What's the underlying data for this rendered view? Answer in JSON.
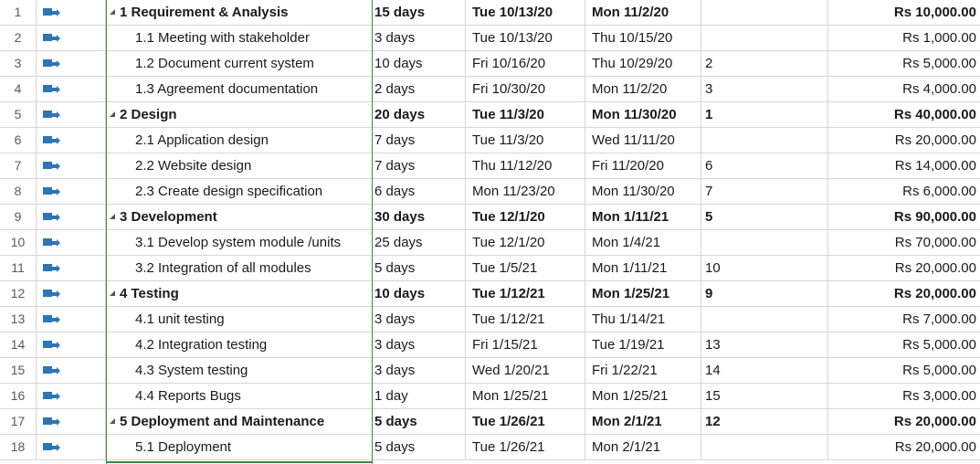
{
  "tasks": [
    {
      "id": "1",
      "name": "1 Requirement & Analysis",
      "duration": "15 days",
      "start": "Tue 10/13/20",
      "finish": "Mon 11/2/20",
      "predecessors": "",
      "cost": "Rs 10,000.00",
      "summary": true
    },
    {
      "id": "2",
      "name": "1.1 Meeting with stakeholder",
      "duration": "3 days",
      "start": "Tue 10/13/20",
      "finish": "Thu 10/15/20",
      "predecessors": "",
      "cost": "Rs 1,000.00",
      "summary": false
    },
    {
      "id": "3",
      "name": "1.2 Document current system",
      "duration": "10 days",
      "start": "Fri 10/16/20",
      "finish": "Thu 10/29/20",
      "predecessors": "2",
      "cost": "Rs 5,000.00",
      "summary": false
    },
    {
      "id": "4",
      "name": "1.3 Agreement documentation",
      "duration": "2 days",
      "start": "Fri 10/30/20",
      "finish": "Mon 11/2/20",
      "predecessors": "3",
      "cost": "Rs 4,000.00",
      "summary": false
    },
    {
      "id": "5",
      "name": "2 Design",
      "duration": "20 days",
      "start": "Tue 11/3/20",
      "finish": "Mon 11/30/20",
      "predecessors": "1",
      "cost": "Rs 40,000.00",
      "summary": true
    },
    {
      "id": "6",
      "name": "2.1 Application design",
      "duration": "7 days",
      "start": "Tue 11/3/20",
      "finish": "Wed 11/11/20",
      "predecessors": "",
      "cost": "Rs 20,000.00",
      "summary": false
    },
    {
      "id": "7",
      "name": "2.2 Website design",
      "duration": "7 days",
      "start": "Thu 11/12/20",
      "finish": "Fri 11/20/20",
      "predecessors": "6",
      "cost": "Rs 14,000.00",
      "summary": false
    },
    {
      "id": "8",
      "name": "2.3 Create design specification",
      "duration": "6 days",
      "start": "Mon 11/23/20",
      "finish": "Mon 11/30/20",
      "predecessors": "7",
      "cost": "Rs 6,000.00",
      "summary": false
    },
    {
      "id": "9",
      "name": "3 Development",
      "duration": "30 days",
      "start": "Tue 12/1/20",
      "finish": "Mon 1/11/21",
      "predecessors": "5",
      "cost": "Rs 90,000.00",
      "summary": true
    },
    {
      "id": "10",
      "name": "3.1 Develop system module /units",
      "duration": "25 days",
      "start": "Tue 12/1/20",
      "finish": "Mon 1/4/21",
      "predecessors": "",
      "cost": "Rs 70,000.00",
      "summary": false
    },
    {
      "id": "11",
      "name": "3.2 Integration of all modules",
      "duration": "5 days",
      "start": "Tue 1/5/21",
      "finish": "Mon 1/11/21",
      "predecessors": "10",
      "cost": "Rs 20,000.00",
      "summary": false
    },
    {
      "id": "12",
      "name": "4 Testing",
      "duration": "10 days",
      "start": "Tue 1/12/21",
      "finish": "Mon 1/25/21",
      "predecessors": "9",
      "cost": "Rs 20,000.00",
      "summary": true
    },
    {
      "id": "13",
      "name": "4.1 unit testing",
      "duration": "3 days",
      "start": "Tue 1/12/21",
      "finish": "Thu 1/14/21",
      "predecessors": "",
      "cost": "Rs 7,000.00",
      "summary": false
    },
    {
      "id": "14",
      "name": "4.2 Integration testing",
      "duration": "3 days",
      "start": "Fri 1/15/21",
      "finish": "Tue 1/19/21",
      "predecessors": "13",
      "cost": "Rs 5,000.00",
      "summary": false
    },
    {
      "id": "15",
      "name": "4.3 System testing",
      "duration": "3 days",
      "start": "Wed 1/20/21",
      "finish": "Fri 1/22/21",
      "predecessors": "14",
      "cost": "Rs 5,000.00",
      "summary": false
    },
    {
      "id": "16",
      "name": "4.4 Reports Bugs",
      "duration": "1 day",
      "start": "Mon 1/25/21",
      "finish": "Mon 1/25/21",
      "predecessors": "15",
      "cost": "Rs 3,000.00",
      "summary": false
    },
    {
      "id": "17",
      "name": "5 Deployment and Maintenance",
      "duration": "5 days",
      "start": "Tue 1/26/21",
      "finish": "Mon 2/1/21",
      "predecessors": "12",
      "cost": "Rs 20,000.00",
      "summary": true
    },
    {
      "id": "18",
      "name": "5.1 Deployment",
      "duration": "5 days",
      "start": "Tue 1/26/21",
      "finish": "Mon 2/1/21",
      "predecessors": "",
      "cost": "Rs 20,000.00",
      "summary": false
    }
  ],
  "icons": {
    "task_mode": "auto-scheduled-task-icon",
    "collapse": "collapse-triangle-icon"
  },
  "colors": {
    "task_mode_icon": "#2e75b6",
    "selected_column_border": "#3f8a3f",
    "gridline": "#d6d6d6"
  }
}
